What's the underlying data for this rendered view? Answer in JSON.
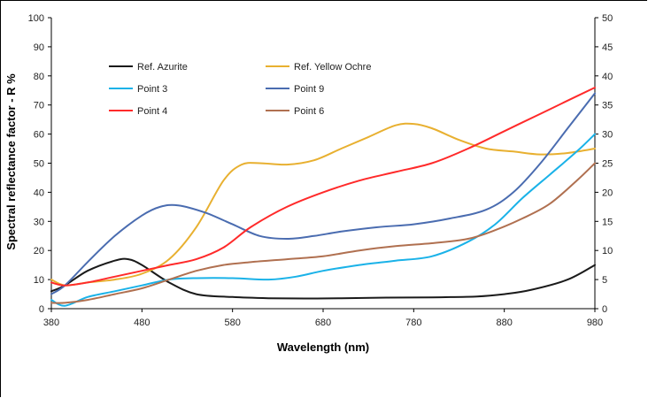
{
  "chart_data": {
    "type": "line",
    "title": "",
    "xlabel": "Wavelength (nm)",
    "ylabel": "Spectral reflectance factor - R %",
    "xlim": [
      380,
      980
    ],
    "ylim": [
      0,
      100
    ],
    "y2lim": [
      0,
      50
    ],
    "x_ticks": [
      "380",
      "480",
      "580",
      "680",
      "780",
      "880",
      "980"
    ],
    "y_ticks": [
      "0",
      "10",
      "20",
      "30",
      "40",
      "50",
      "60",
      "70",
      "80",
      "90",
      "100"
    ],
    "y2_ticks": [
      "0",
      "5",
      "10",
      "15",
      "20",
      "25",
      "30",
      "35",
      "40",
      "45",
      "50"
    ],
    "grid": false,
    "legend_position": "top-left",
    "series": [
      {
        "name": "Ref. Azurite",
        "color": "#1a1a1a",
        "x": [
          380,
          395,
          420,
          450,
          465,
          480,
          510,
          540,
          580,
          620,
          660,
          700,
          750,
          800,
          850,
          880,
          910,
          950,
          980
        ],
        "y": [
          6,
          8,
          13,
          16.5,
          17,
          15,
          9,
          5,
          4,
          3.6,
          3.5,
          3.6,
          3.8,
          3.9,
          4.2,
          5,
          6.5,
          10,
          15
        ]
      },
      {
        "name": "Ref. Yellow Ochre",
        "color": "#e8b030",
        "x": [
          380,
          395,
          420,
          450,
          480,
          510,
          540,
          570,
          590,
          610,
          640,
          670,
          700,
          730,
          760,
          780,
          800,
          830,
          860,
          890,
          920,
          950,
          980
        ],
        "y": [
          10,
          8,
          9,
          10,
          12,
          17,
          28,
          44,
          49.5,
          50,
          49.5,
          51,
          55,
          59,
          63,
          63.5,
          62,
          58,
          55,
          54,
          53,
          53.5,
          55
        ]
      },
      {
        "name": "Point 3",
        "color": "#1ab2e8",
        "x": [
          380,
          395,
          420,
          450,
          480,
          510,
          540,
          580,
          620,
          650,
          680,
          720,
          760,
          800,
          840,
          870,
          900,
          930,
          960,
          980
        ],
        "y": [
          3,
          1,
          4,
          6,
          8,
          10,
          10.5,
          10.5,
          10,
          11,
          13,
          15,
          16.5,
          18,
          23,
          29,
          38,
          46,
          54,
          60
        ]
      },
      {
        "name": "Point 9",
        "color": "#4a6cb0",
        "x": [
          380,
          395,
          420,
          450,
          480,
          500,
          520,
          550,
          580,
          610,
          640,
          670,
          700,
          740,
          780,
          820,
          860,
          890,
          920,
          950,
          980
        ],
        "y": [
          5,
          8,
          16,
          25,
          32,
          35,
          35.5,
          33,
          29,
          25,
          24,
          25,
          26.5,
          28,
          29,
          31,
          34,
          40,
          50,
          62,
          74
        ]
      },
      {
        "name": "Point 4",
        "color": "#ff2a2a",
        "x": [
          380,
          395,
          420,
          450,
          480,
          510,
          540,
          570,
          600,
          640,
          680,
          720,
          760,
          800,
          840,
          880,
          920,
          960,
          980
        ],
        "y": [
          9,
          8,
          9,
          11,
          13,
          15,
          17,
          21,
          28,
          35,
          40,
          44,
          47,
          50,
          55,
          61,
          67,
          73,
          76
        ]
      },
      {
        "name": "Point 6",
        "color": "#b07050",
        "x": [
          380,
          395,
          420,
          450,
          480,
          510,
          540,
          570,
          600,
          640,
          680,
          720,
          760,
          800,
          840,
          870,
          900,
          930,
          960,
          980
        ],
        "y": [
          2,
          2,
          3,
          5,
          7,
          10,
          13,
          15,
          16,
          17,
          18,
          20,
          21.5,
          22.5,
          24,
          27,
          31,
          36,
          44,
          50
        ]
      }
    ]
  }
}
